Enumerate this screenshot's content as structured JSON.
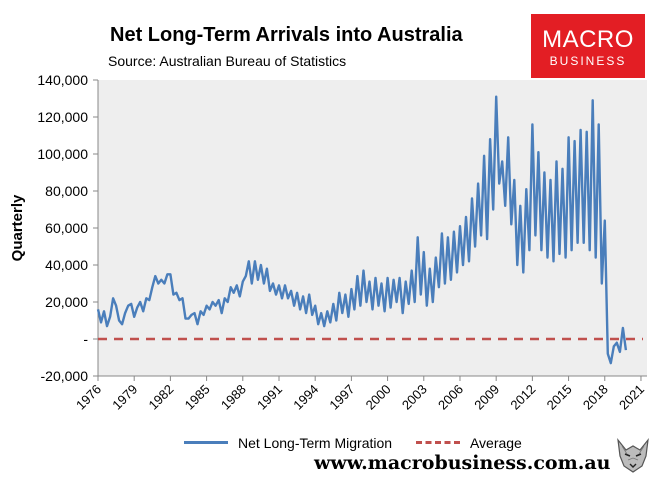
{
  "header": {
    "title": "Net Long-Term Arrivals into Australia",
    "subtitle": "Source: Australian Bureau of Statistics"
  },
  "logo": {
    "line1": "MACRO",
    "line2": "BUSINESS",
    "color": "#e31e24"
  },
  "footer": {
    "website": "www.macrobusiness.com.au"
  },
  "colors": {
    "series": "#4a7ebb",
    "average": "#c0504d",
    "plot_bg": "#eeeeee"
  },
  "chart_data": {
    "type": "line",
    "title": "Net Long-Term Arrivals into Australia",
    "ylabel": "Quarterly",
    "xlabel": "",
    "ylim": [
      -20000,
      140000
    ],
    "xlim": [
      1976,
      2021.5
    ],
    "yticks": [
      -20000,
      0,
      20000,
      40000,
      60000,
      80000,
      100000,
      120000,
      140000
    ],
    "ytick_labels": [
      "-20,000",
      "-",
      "20,000",
      "40,000",
      "60,000",
      "80,000",
      "100,000",
      "120,000",
      "140,000"
    ],
    "xticks": [
      1976,
      1979,
      1982,
      1985,
      1988,
      1991,
      1994,
      1997,
      2000,
      2003,
      2006,
      2009,
      2012,
      2015,
      2018,
      2021
    ],
    "grid": false,
    "legend_position": "bottom",
    "series": [
      {
        "name": "Net Long-Term Migration",
        "style": "solid",
        "x_start": 1976.0,
        "x_step": 0.25,
        "values": [
          16000,
          9000,
          15000,
          7000,
          12000,
          22000,
          18000,
          10000,
          8000,
          14000,
          18000,
          19000,
          12000,
          17000,
          20000,
          15000,
          22000,
          21000,
          28000,
          34000,
          30000,
          32000,
          30000,
          35000,
          35000,
          24000,
          25000,
          21000,
          22000,
          11000,
          11000,
          13000,
          14000,
          8000,
          15000,
          13000,
          18000,
          16000,
          20000,
          18000,
          21000,
          14000,
          22000,
          20000,
          28000,
          25000,
          29000,
          23000,
          31000,
          34000,
          42000,
          30000,
          42000,
          32000,
          40000,
          30000,
          38000,
          26000,
          30000,
          24000,
          29000,
          22000,
          29000,
          22000,
          26000,
          18000,
          25000,
          16000,
          23000,
          14000,
          24000,
          13000,
          18000,
          8000,
          14000,
          7000,
          15000,
          9000,
          19000,
          10000,
          25000,
          14000,
          24000,
          12000,
          27000,
          16000,
          34000,
          18000,
          37000,
          20000,
          31000,
          16000,
          33000,
          18000,
          30000,
          15000,
          33000,
          17000,
          32000,
          20000,
          33000,
          14000,
          31000,
          19000,
          37000,
          20000,
          55000,
          24000,
          47000,
          18000,
          38000,
          20000,
          44000,
          28000,
          57000,
          30000,
          55000,
          32000,
          58000,
          36000,
          61000,
          40000,
          66000,
          42000,
          76000,
          50000,
          84000,
          56000,
          99000,
          54000,
          108000,
          70000,
          131000,
          84000,
          96000,
          72000,
          109000,
          62000,
          86000,
          40000,
          72000,
          36000,
          81000,
          48000,
          116000,
          56000,
          101000,
          48000,
          90000,
          44000,
          86000,
          42000,
          96000,
          46000,
          92000,
          44000,
          109000,
          48000,
          107000,
          52000,
          113000,
          52000,
          112000,
          48000,
          129000,
          44000,
          116000,
          30000,
          64000,
          -8000,
          -13000,
          -4000,
          -2000,
          -7000,
          6000,
          -6000
        ]
      },
      {
        "name": "Average",
        "style": "dashed",
        "value": 0
      }
    ]
  }
}
